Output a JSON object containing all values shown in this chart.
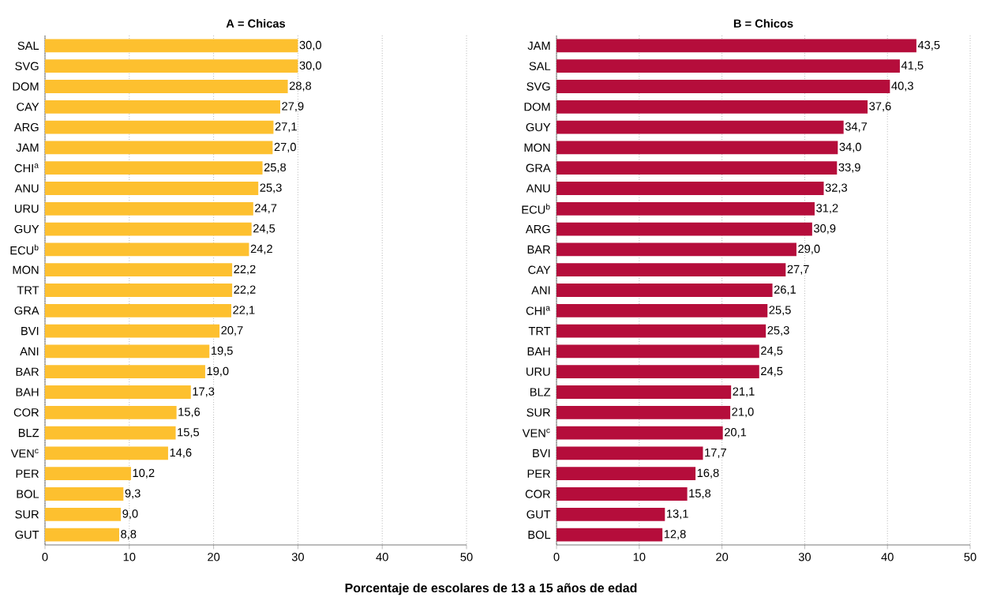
{
  "chart_data": [
    {
      "type": "bar",
      "orientation": "horizontal",
      "title": "A = Chicas",
      "color": "#fdc02f",
      "grid": "x",
      "categories": [
        "SAL",
        "SVG",
        "DOM",
        "CAY",
        "ARG",
        "JAM",
        "CHI$^{a}$",
        "ANU",
        "URU",
        "GUY",
        "ECU$^{b}$",
        "MON",
        "TRT",
        "GRA",
        "BVI",
        "ANI",
        "BAR",
        "BAH",
        "COR",
        "BLZ",
        "VEN$^{c}$",
        "PER",
        "BOL",
        "SUR",
        "GUT"
      ],
      "values": [
        30.0,
        30.0,
        28.8,
        27.9,
        27.1,
        27.0,
        25.8,
        25.3,
        24.7,
        24.5,
        24.2,
        22.2,
        22.2,
        22.1,
        20.7,
        19.5,
        19.0,
        17.3,
        15.6,
        15.5,
        14.6,
        10.2,
        9.3,
        9.0,
        8.8
      ],
      "value_labels": [
        "30,0",
        "30,0",
        "28,8",
        "27,9",
        "27,1",
        "27,0",
        "25,8",
        "25,3",
        "24,7",
        "24,5",
        "24,2",
        "22,2",
        "22,2",
        "22,1",
        "20,7",
        "19,5",
        "19,0",
        "17,3",
        "15,6",
        "15,5",
        "14,6",
        "10,2",
        "9,3",
        "9,0",
        "8,8"
      ],
      "xlim": [
        0,
        50
      ],
      "xticks": [
        0,
        10,
        20,
        30,
        40,
        50
      ],
      "annotations": [
        "Porcentaje de escolares de 13 a 15 años de edad"
      ]
    },
    {
      "type": "bar",
      "orientation": "horizontal",
      "title": "B = Chicos",
      "color": "#b50d3b",
      "grid": "x",
      "categories": [
        "JAM",
        "SAL",
        "SVG",
        "DOM",
        "GUY",
        "MON",
        "GRA",
        "ANU",
        "ECU$^{b}$",
        "ARG",
        "BAR",
        "CAY",
        "ANI",
        "CHI$^{a}$",
        "TRT",
        "BAH",
        "URU",
        "BLZ",
        "SUR",
        "VEN$^{c}$",
        "BVI",
        "PER",
        "COR",
        "GUT",
        "BOL"
      ],
      "values": [
        43.5,
        41.5,
        40.3,
        37.6,
        34.7,
        34.0,
        33.9,
        32.3,
        31.2,
        30.9,
        29.0,
        27.7,
        26.1,
        25.5,
        25.3,
        24.5,
        24.5,
        21.1,
        21.0,
        20.1,
        17.7,
        16.8,
        15.8,
        13.1,
        12.8
      ],
      "value_labels": [
        "43,5",
        "41,5",
        "40,3",
        "37,6",
        "34,7",
        "34,0",
        "33,9",
        "32,3",
        "31,2",
        "30,9",
        "29,0",
        "27,7",
        "26,1",
        "25,5",
        "25,3",
        "24,5",
        "24,5",
        "21,1",
        "21,0",
        "20,1",
        "17,7",
        "16,8",
        "15,8",
        "13,1",
        "12,8"
      ],
      "xlim": [
        0,
        50
      ],
      "xticks": [
        0,
        10,
        20,
        30,
        40,
        50
      ]
    }
  ]
}
